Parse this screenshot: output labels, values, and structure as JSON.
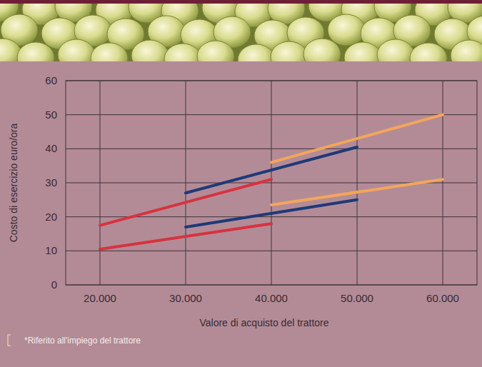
{
  "chart_data": {
    "type": "line",
    "x_label": "Valore di acquisto del trattore",
    "y_label": "Costo di esercizio euro/ora",
    "annotations": [
      "*Riferito all'impiego del trattore"
    ],
    "x": [
      20000,
      30000,
      40000,
      50000,
      60000
    ],
    "series": [
      {
        "color": "#d8323f",
        "values": [
          17.5,
          null,
          31,
          null,
          null
        ]
      },
      {
        "color": "#d8323f",
        "values": [
          10.5,
          null,
          18,
          null,
          null
        ]
      },
      {
        "color": "#1e3a78",
        "values": [
          null,
          27,
          null,
          40.5,
          null
        ]
      },
      {
        "color": "#1e3a78",
        "values": [
          null,
          17,
          null,
          25,
          null
        ]
      },
      {
        "color": "#f2a65a",
        "values": [
          null,
          null,
          36,
          null,
          50
        ]
      },
      {
        "color": "#f2a65a",
        "values": [
          null,
          null,
          23.5,
          null,
          31
        ]
      }
    ],
    "xlim": [
      16000,
      64000
    ],
    "xticks": [
      {
        "value": 20000,
        "label": "20.000"
      },
      {
        "value": 30000,
        "label": "30.000"
      },
      {
        "value": 40000,
        "label": "40.000"
      },
      {
        "value": 50000,
        "label": "50.000"
      },
      {
        "value": 60000,
        "label": "60.000"
      }
    ],
    "ylim": [
      0,
      60
    ],
    "yticks": [
      0,
      10,
      20,
      30,
      40,
      50,
      60
    ],
    "grid": true
  }
}
